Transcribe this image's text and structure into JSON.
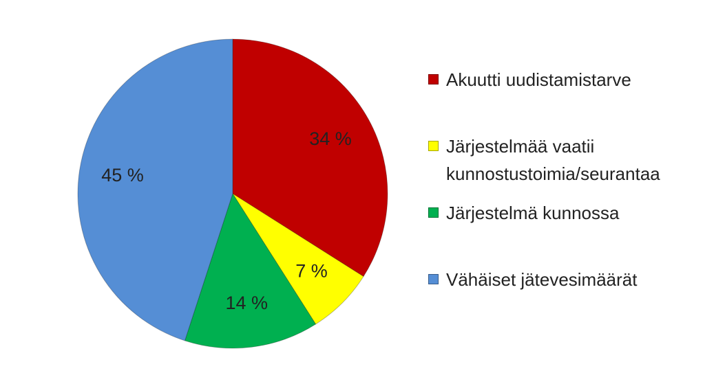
{
  "chart_data": {
    "type": "pie",
    "categories": [
      "Akuutti uudistamistarve",
      "Järjestelmää vaatii kunnostustoimia/seurantaa",
      "Järjestelmä kunnossa",
      "Vähäiset jätevesimäärät"
    ],
    "values": [
      34,
      7,
      14,
      45
    ],
    "value_labels": [
      "34 %",
      "7 %",
      "14 %",
      "45 %"
    ],
    "colors": [
      "#c00000",
      "#ffff00",
      "#00b050",
      "#558ed5"
    ],
    "legend": "right"
  }
}
